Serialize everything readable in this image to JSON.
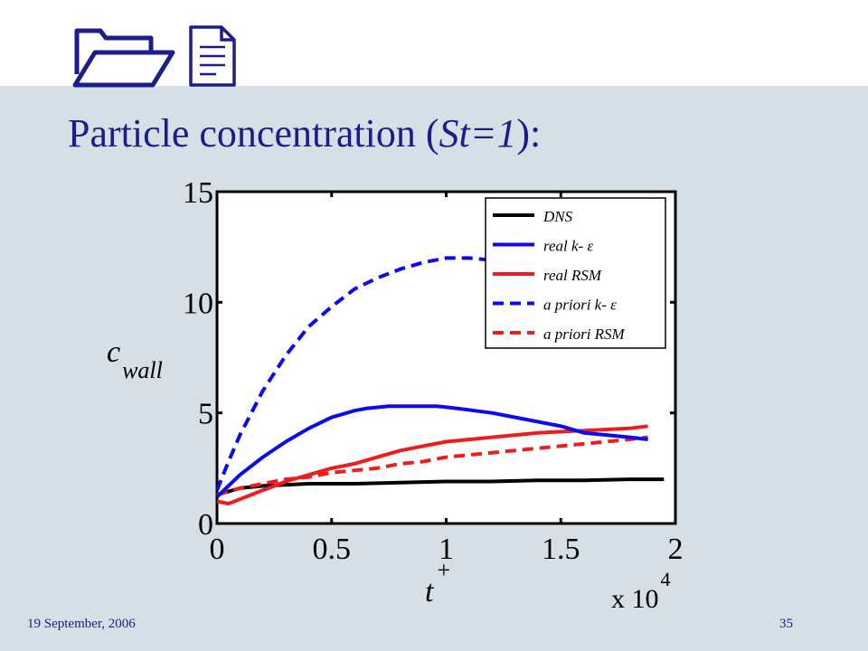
{
  "slide": {
    "title_prefix": "Particle concentration (",
    "title_italic": "St=1",
    "title_suffix": "):",
    "footer_date": "19 September, 2006",
    "page_number": "35",
    "background_color": "#d6dfe6",
    "title_color": "#1c1c8a",
    "logo": [
      "folder-icon",
      "document-icon"
    ]
  },
  "chart_data": {
    "type": "line",
    "ylabel_main": "c",
    "ylabel_sub": "wall",
    "xlabel_main": "t",
    "xlabel_sup": "+",
    "x_multiplier_base": "x 10",
    "x_multiplier_exp": "4",
    "xlim": [
      0,
      2
    ],
    "ylim": [
      0,
      15
    ],
    "xticks": [
      "0",
      "0.5",
      "1",
      "1.5",
      "2"
    ],
    "yticks": [
      "0",
      "5",
      "10",
      "15"
    ],
    "legend_position": "top-right",
    "series": [
      {
        "name": "DNS",
        "color": "#000000",
        "dash": "solid",
        "x": [
          0,
          0.1,
          0.2,
          0.4,
          0.6,
          0.8,
          1.0,
          1.2,
          1.4,
          1.6,
          1.8,
          1.95
        ],
        "y": [
          1.3,
          1.6,
          1.7,
          1.8,
          1.8,
          1.85,
          1.9,
          1.9,
          1.95,
          1.95,
          2.0,
          2.0
        ]
      },
      {
        "name": "real k- ε",
        "color": "#0a0af0",
        "dash": "solid",
        "x": [
          0,
          0.1,
          0.2,
          0.3,
          0.4,
          0.5,
          0.6,
          0.65,
          0.75,
          0.9,
          0.96,
          1.05,
          1.2,
          1.35,
          1.5,
          1.6,
          1.7,
          1.8,
          1.88
        ],
        "y": [
          1.2,
          2.2,
          3.0,
          3.7,
          4.3,
          4.8,
          5.1,
          5.2,
          5.3,
          5.3,
          5.3,
          5.2,
          5.0,
          4.7,
          4.4,
          4.1,
          4.0,
          3.9,
          3.8
        ]
      },
      {
        "name": "real RSM",
        "color": "#ee1c1c",
        "dash": "solid",
        "x": [
          0,
          0.05,
          0.1,
          0.2,
          0.3,
          0.4,
          0.5,
          0.6,
          0.7,
          0.8,
          0.9,
          1.0,
          1.2,
          1.4,
          1.6,
          1.8,
          1.88
        ],
        "y": [
          1.0,
          0.9,
          1.1,
          1.5,
          1.9,
          2.2,
          2.5,
          2.7,
          3.0,
          3.3,
          3.5,
          3.7,
          3.9,
          4.1,
          4.2,
          4.3,
          4.4
        ]
      },
      {
        "name": "a priori k- ε",
        "color": "#0a0af0",
        "dash": "dashed",
        "x": [
          0,
          0.05,
          0.1,
          0.2,
          0.3,
          0.4,
          0.5,
          0.6,
          0.7,
          0.8,
          0.9,
          1.0,
          1.1,
          1.2,
          1.3,
          1.4,
          1.5,
          1.6,
          1.7,
          1.8,
          1.88
        ],
        "y": [
          1.5,
          2.8,
          4.0,
          6.0,
          7.6,
          8.9,
          9.8,
          10.6,
          11.1,
          11.5,
          11.8,
          12.0,
          12.0,
          11.9,
          11.6,
          11.3,
          11.1,
          11.0,
          10.9,
          10.7,
          10.7
        ]
      },
      {
        "name": "a priori RSM",
        "color": "#ee1c1c",
        "dash": "dashed",
        "x": [
          0,
          0.1,
          0.2,
          0.3,
          0.4,
          0.5,
          0.6,
          0.7,
          0.8,
          0.9,
          1.0,
          1.2,
          1.4,
          1.6,
          1.8,
          1.88
        ],
        "y": [
          1.3,
          1.6,
          1.8,
          2.0,
          2.1,
          2.3,
          2.4,
          2.5,
          2.7,
          2.8,
          3.0,
          3.2,
          3.4,
          3.6,
          3.8,
          3.9
        ]
      }
    ]
  }
}
